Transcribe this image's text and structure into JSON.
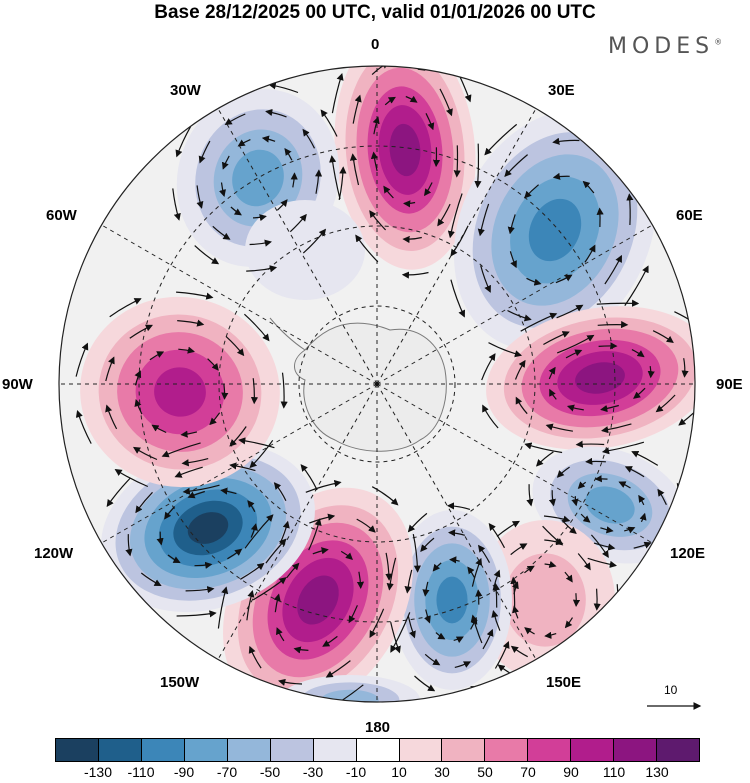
{
  "header": {
    "title": "Base 28/12/2025 00 UTC, valid 01/01/2026 00 UTC",
    "brand": "MODES",
    "brand_mark": "®"
  },
  "map": {
    "longitude_labels": {
      "n": "0",
      "ne": "30E",
      "e1": "60E",
      "e": "90E",
      "se1": "120E",
      "se": "150E",
      "s": "180",
      "sw": "150W",
      "sw1": "120W",
      "w": "90W",
      "nw1": "60W",
      "nw": "30W"
    },
    "reference_vector": "10"
  },
  "legend": {
    "colors": [
      "#1b4060",
      "#1f5f8b",
      "#3c86b8",
      "#66a3cd",
      "#94b7da",
      "#bcc4e0",
      "#e6e6f0",
      "#ffffff",
      "#f6d8dc",
      "#f0b3c1",
      "#e87aa8",
      "#d23e98",
      "#b11d8c",
      "#8c1580",
      "#5e1a6e"
    ],
    "ticks": [
      "-130",
      "-110",
      "-90",
      "-70",
      "-50",
      "-30",
      "-10",
      "10",
      "30",
      "50",
      "70",
      "90",
      "110",
      "130"
    ]
  }
}
